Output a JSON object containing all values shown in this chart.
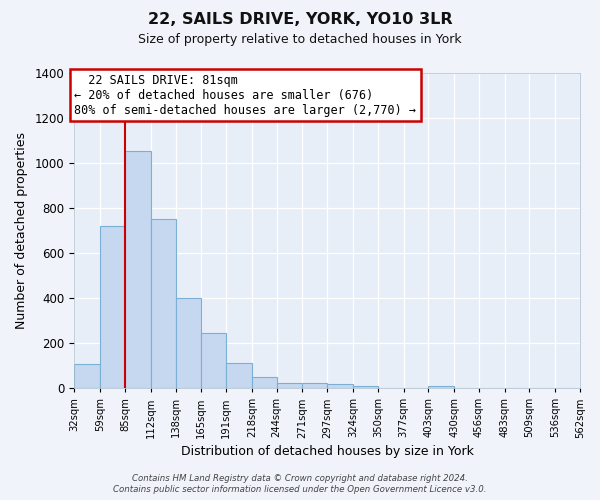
{
  "title": "22, SAILS DRIVE, YORK, YO10 3LR",
  "subtitle": "Size of property relative to detached houses in York",
  "xlabel": "Distribution of detached houses by size in York",
  "ylabel": "Number of detached properties",
  "bar_color": "#c5d8f0",
  "bar_edge_color": "#7bafd4",
  "background_color": "#e8eef8",
  "grid_color": "#ffffff",
  "vline_color": "#cc0000",
  "vline_x": 85,
  "bin_edges": [
    32,
    59,
    85,
    112,
    138,
    165,
    191,
    218,
    244,
    271,
    297,
    324,
    350,
    377,
    403,
    430,
    456,
    483,
    509,
    536,
    562
  ],
  "bar_heights": [
    105,
    720,
    1050,
    750,
    400,
    245,
    110,
    48,
    25,
    25,
    20,
    10,
    0,
    0,
    10,
    0,
    0,
    0,
    0,
    0
  ],
  "ylim": [
    0,
    1400
  ],
  "yticks": [
    0,
    200,
    400,
    600,
    800,
    1000,
    1200,
    1400
  ],
  "annotation_title": "22 SAILS DRIVE: 81sqm",
  "annotation_line1": "← 20% of detached houses are smaller (676)",
  "annotation_line2": "80% of semi-detached houses are larger (2,770) →",
  "annotation_box_color": "#ffffff",
  "annotation_border_color": "#cc0000",
  "footer_line1": "Contains HM Land Registry data © Crown copyright and database right 2024.",
  "footer_line2": "Contains public sector information licensed under the Open Government Licence v3.0.",
  "tick_labels": [
    "32sqm",
    "59sqm",
    "85sqm",
    "112sqm",
    "138sqm",
    "165sqm",
    "191sqm",
    "218sqm",
    "244sqm",
    "271sqm",
    "297sqm",
    "324sqm",
    "350sqm",
    "377sqm",
    "403sqm",
    "430sqm",
    "456sqm",
    "483sqm",
    "509sqm",
    "536sqm",
    "562sqm"
  ],
  "fig_bg_color": "#f0f4fa"
}
